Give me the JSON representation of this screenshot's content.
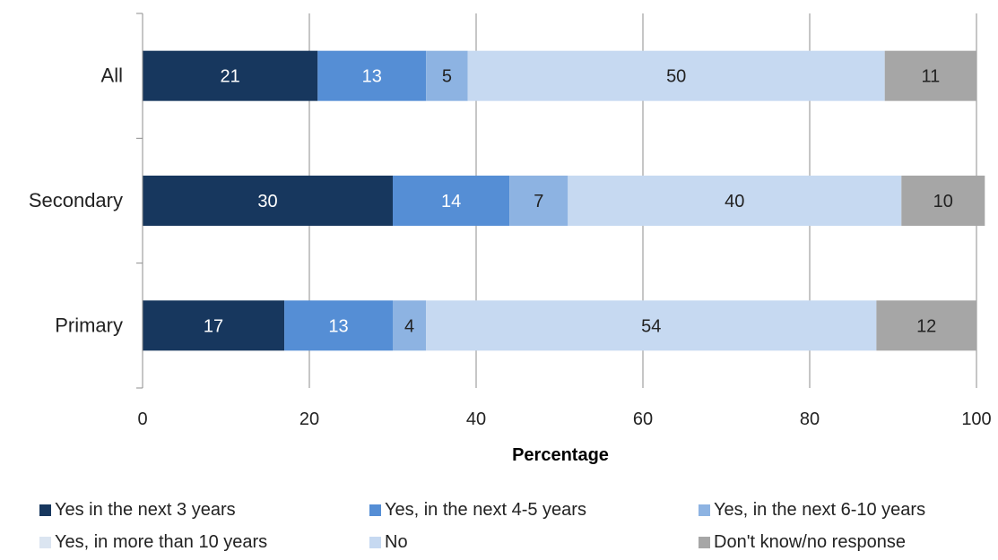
{
  "chart_data": {
    "type": "bar",
    "orientation": "horizontal",
    "stacked": true,
    "xlabel": "Percentage",
    "xlim": [
      0,
      100
    ],
    "xticks": [
      0,
      20,
      40,
      60,
      80,
      100
    ],
    "categories": [
      "All",
      "Secondary",
      "Primary"
    ],
    "series": [
      {
        "name": "Yes in the next 3 years",
        "color": "#17375e",
        "label_color": "#ffffff",
        "values": [
          21,
          30,
          17
        ]
      },
      {
        "name": "Yes, in the next 4-5 years",
        "color": "#558ed5",
        "label_color": "#ffffff",
        "values": [
          13,
          14,
          13
        ]
      },
      {
        "name": "Yes, in the next 6-10 years",
        "color": "#8db3e2",
        "label_color": "#222222",
        "values": [
          5,
          7,
          4
        ]
      },
      {
        "name": "Yes, in more than 10 years",
        "color": "#dbe5f1",
        "label_color": "#222222",
        "values": [
          0,
          0,
          0
        ]
      },
      {
        "name": "No",
        "color": "#c6d9f1",
        "label_color": "#222222",
        "values": [
          50,
          40,
          54
        ]
      },
      {
        "name": "Don't know/no response",
        "color": "#a6a6a6",
        "label_color": "#222222",
        "values": [
          11,
          10,
          12
        ]
      }
    ],
    "grid": true,
    "legend_position": "bottom"
  }
}
